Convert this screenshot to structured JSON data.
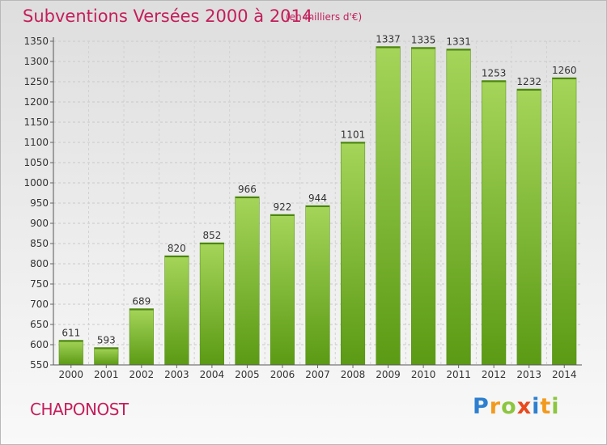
{
  "header": {
    "title": "Subventions Versées 2000 à 2014",
    "unit": "(en milliers d'€)"
  },
  "footer": {
    "commune": "CHAPONOST",
    "logo_letters": [
      {
        "char": "P",
        "color": "#2e7fcf"
      },
      {
        "char": "r",
        "color": "#f29a1d"
      },
      {
        "char": "o",
        "color": "#8cc63f"
      },
      {
        "char": "x",
        "color": "#e8491d"
      },
      {
        "char": "i",
        "color": "#2e7fcf"
      },
      {
        "char": "t",
        "color": "#f29a1d"
      },
      {
        "char": "i",
        "color": "#8cc63f"
      }
    ]
  },
  "chart_data": {
    "type": "bar",
    "categories": [
      "2000",
      "2001",
      "2002",
      "2003",
      "2004",
      "2005",
      "2006",
      "2007",
      "2008",
      "2009",
      "2010",
      "2011",
      "2012",
      "2013",
      "2014"
    ],
    "values": [
      611,
      593,
      689,
      820,
      852,
      966,
      922,
      944,
      1101,
      1337,
      1335,
      1331,
      1253,
      1232,
      1260
    ],
    "data_labels": [
      "611",
      "593",
      "689",
      "820",
      "852",
      "966",
      "922",
      "944",
      "1101",
      "1337",
      "1335",
      "1331",
      "1253",
      "1232",
      "1260"
    ],
    "title": "Subventions Versées 2000 à 2014",
    "xlabel": "",
    "ylabel": "",
    "ylim": [
      550,
      1350
    ],
    "yticks": [
      "550",
      "600",
      "650",
      "700",
      "750",
      "800",
      "850",
      "900",
      "950",
      "1000",
      "1050",
      "1100",
      "1150",
      "1200",
      "1250",
      "1300",
      "1350"
    ],
    "grid": true,
    "bar_color_light": "#a5d55a",
    "bar_color_dark": "#5b9a14"
  }
}
